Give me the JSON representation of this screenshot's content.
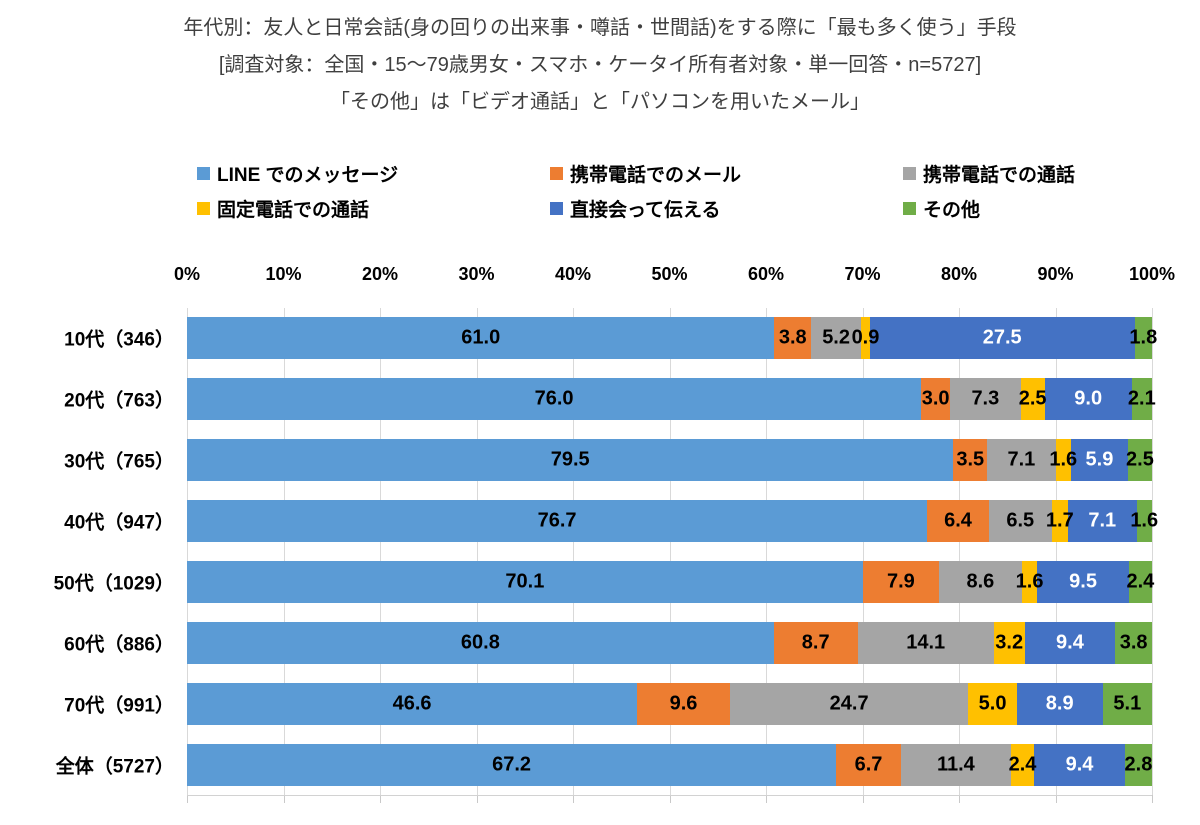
{
  "chart_data": {
    "type": "bar",
    "orientation": "horizontal",
    "stacked": true,
    "title": "年代別：友人と日常会話(身の回りの出来事・噂話・世間話)をする際に「最も多く使う」手段",
    "subtitle": "[調査対象：全国・15～79歳男女・スマホ・ケータイ所有者対象・単一回答・n=5727]",
    "note": "「その他」は「ビデオ通話」と「パソコンを用いたメール」",
    "categories": [
      "10代（346）",
      "20代（763）",
      "30代（765）",
      "40代（947）",
      "50代（1029）",
      "60代（886）",
      "70代（991）",
      "全体（5727）"
    ],
    "series": [
      {
        "name": "LINE でのメッセージ",
        "color": "#5B9BD5",
        "label_color": "#000000",
        "values": [
          61.0,
          76.0,
          79.5,
          76.7,
          70.1,
          60.8,
          46.6,
          67.2
        ]
      },
      {
        "name": "携帯電話でのメール",
        "color": "#ED7D31",
        "label_color": "#000000",
        "values": [
          3.8,
          3.0,
          3.5,
          6.4,
          7.9,
          8.7,
          9.6,
          6.7
        ]
      },
      {
        "name": "携帯電話での通話",
        "color": "#A5A5A5",
        "label_color": "#000000",
        "values": [
          5.2,
          7.3,
          7.1,
          6.5,
          8.6,
          14.1,
          24.7,
          11.4
        ]
      },
      {
        "name": "固定電話での通話",
        "color": "#FFC000",
        "label_color": "#000000",
        "values": [
          0.9,
          2.5,
          1.6,
          1.7,
          1.6,
          3.2,
          5.0,
          2.4
        ]
      },
      {
        "name": "直接会って伝える",
        "color": "#4472C4",
        "label_color": "#FFFFFF",
        "values": [
          27.5,
          9.0,
          5.9,
          7.1,
          9.5,
          9.4,
          8.9,
          9.4
        ]
      },
      {
        "name": "その他",
        "color": "#70AD47",
        "label_color": "#000000",
        "values": [
          1.8,
          2.1,
          2.5,
          1.6,
          2.4,
          3.8,
          5.1,
          2.8
        ]
      }
    ],
    "x_axis": {
      "min": 0,
      "max": 100,
      "ticks": [
        "0%",
        "10%",
        "20%",
        "30%",
        "40%",
        "50%",
        "60%",
        "70%",
        "80%",
        "90%",
        "100%"
      ]
    },
    "legend_position": "top",
    "grid": true,
    "value_format": "one-decimal"
  },
  "colors": {
    "grid_line": "#D9D9D9",
    "axis_line": "#D2D2D2",
    "title_text": "#3F3F3F",
    "label_text": "#000000"
  }
}
